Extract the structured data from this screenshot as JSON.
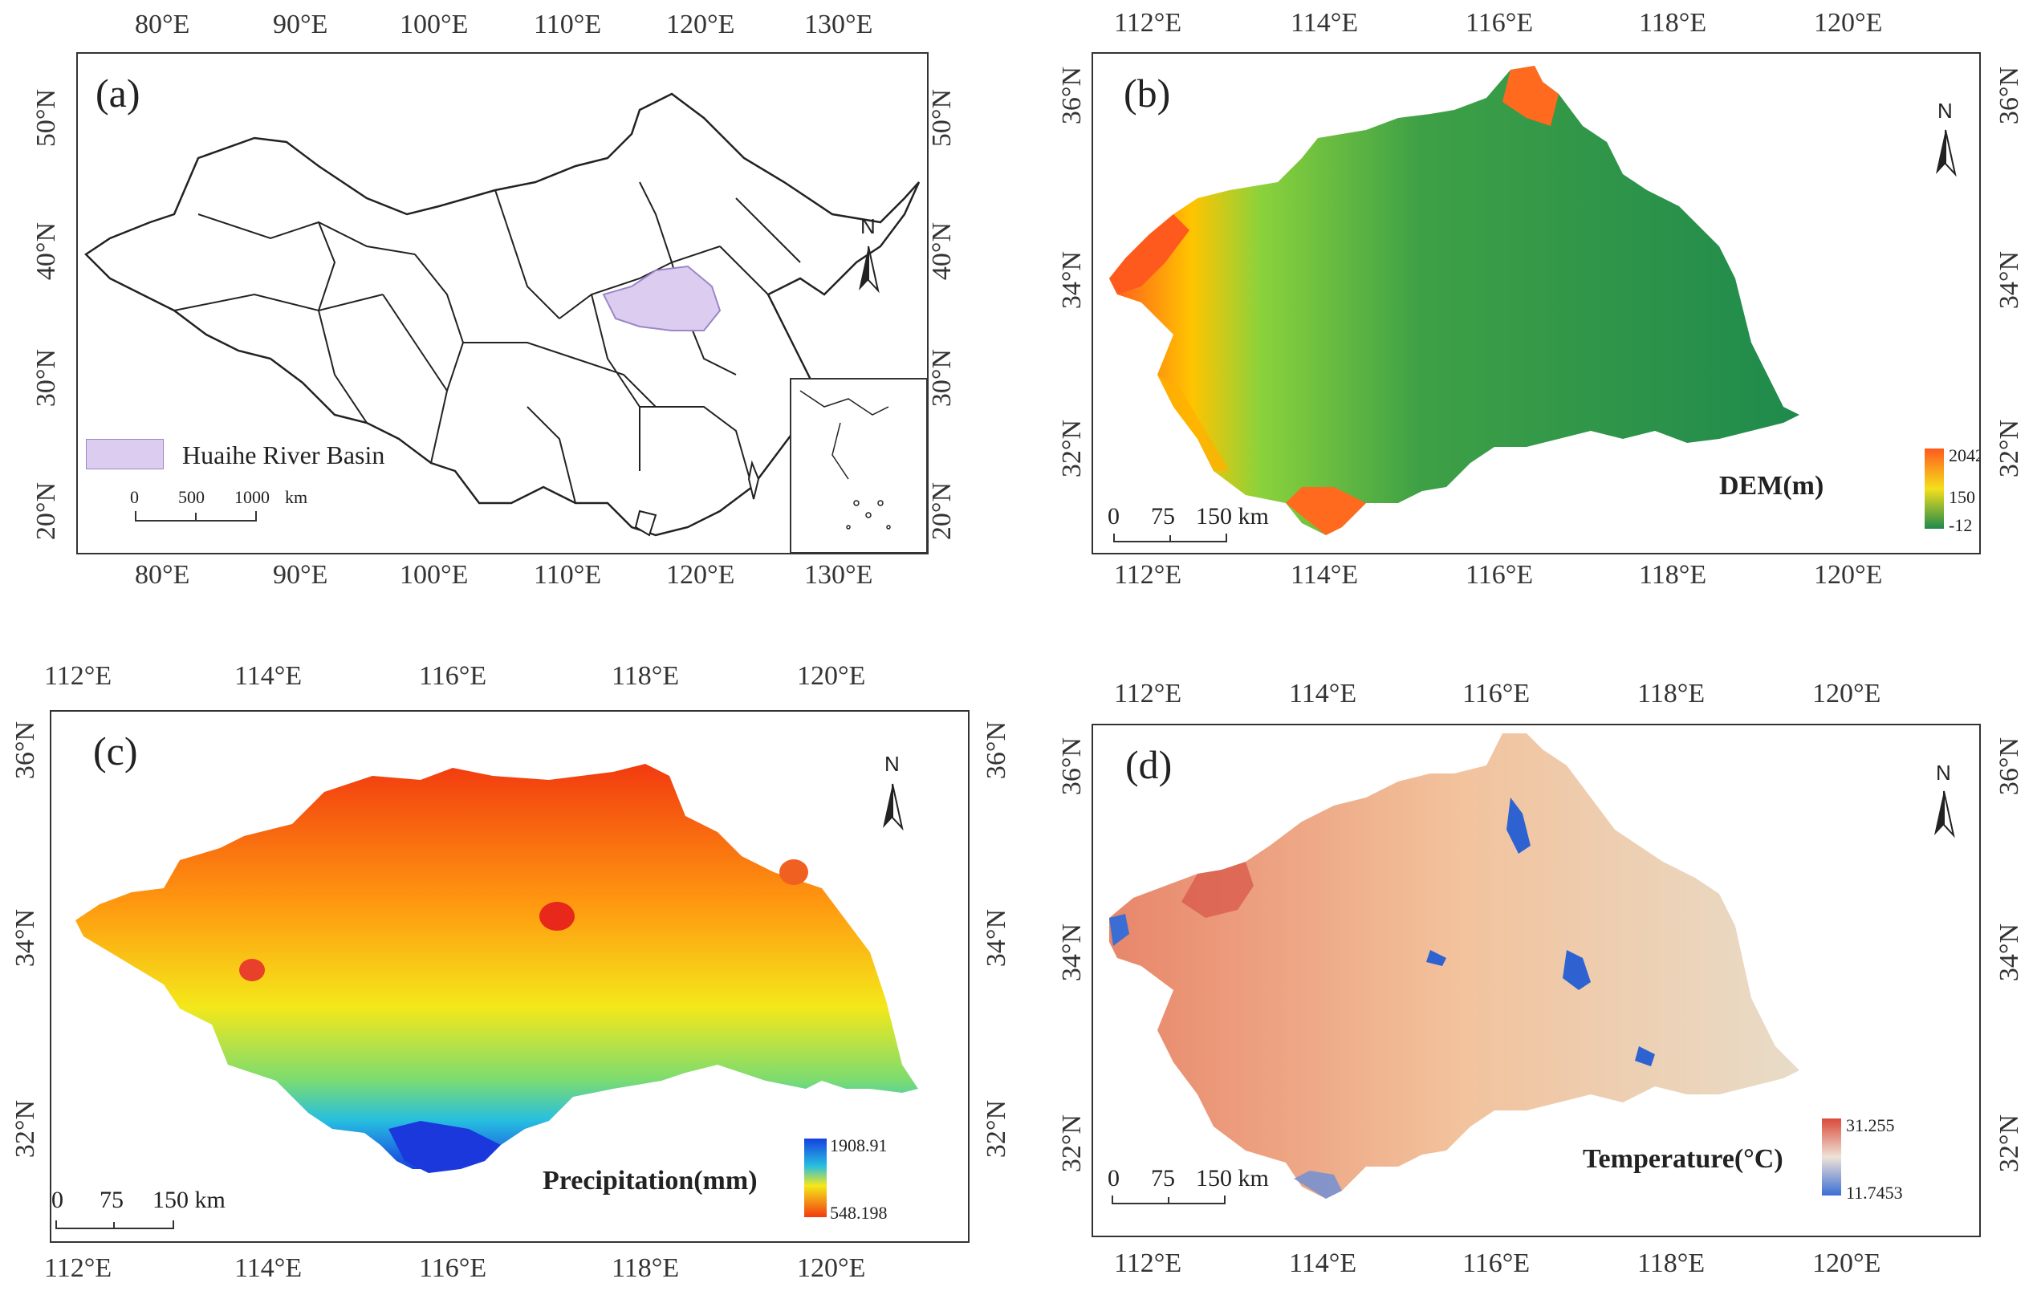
{
  "panels": {
    "a": {
      "label": "(a)",
      "lon_ticks": [
        "80°E",
        "90°E",
        "100°E",
        "110°E",
        "120°E",
        "130°E"
      ],
      "lat_ticks": [
        "50°N",
        "40°N",
        "30°N",
        "20°N"
      ],
      "legend": "Huaihe River Basin",
      "legend_color": "#dccdf0",
      "scale": [
        "0",
        "500",
        "1000",
        "km"
      ],
      "north": "N"
    },
    "b": {
      "label": "(b)",
      "lon_ticks": [
        "112°E",
        "114°E",
        "116°E",
        "118°E",
        "120°E"
      ],
      "lat_ticks": [
        "36°N",
        "34°N",
        "32°N"
      ],
      "legend_title": "DEM(m)",
      "legend_values": [
        "2042",
        "150",
        "-12"
      ],
      "scale": [
        "0",
        "75",
        "150 km"
      ],
      "north": "N"
    },
    "c": {
      "label": "(c)",
      "lon_ticks": [
        "112°E",
        "114°E",
        "116°E",
        "118°E",
        "120°E"
      ],
      "lat_ticks": [
        "36°N",
        "34°N",
        "32°N"
      ],
      "legend_title": "Precipitation(mm)",
      "legend_values": [
        "1908.91",
        "548.198"
      ],
      "scale": [
        "0",
        "75",
        "150 km"
      ],
      "north": "N"
    },
    "d": {
      "label": "(d)",
      "lon_ticks": [
        "112°E",
        "114°E",
        "116°E",
        "118°E",
        "120°E"
      ],
      "lat_ticks": [
        "36°N",
        "34°N",
        "32°N"
      ],
      "legend_title": "Temperature(°C)",
      "legend_values": [
        "31.255",
        "11.7453"
      ],
      "scale": [
        "0",
        "75",
        "150 km"
      ],
      "north": "N"
    }
  }
}
